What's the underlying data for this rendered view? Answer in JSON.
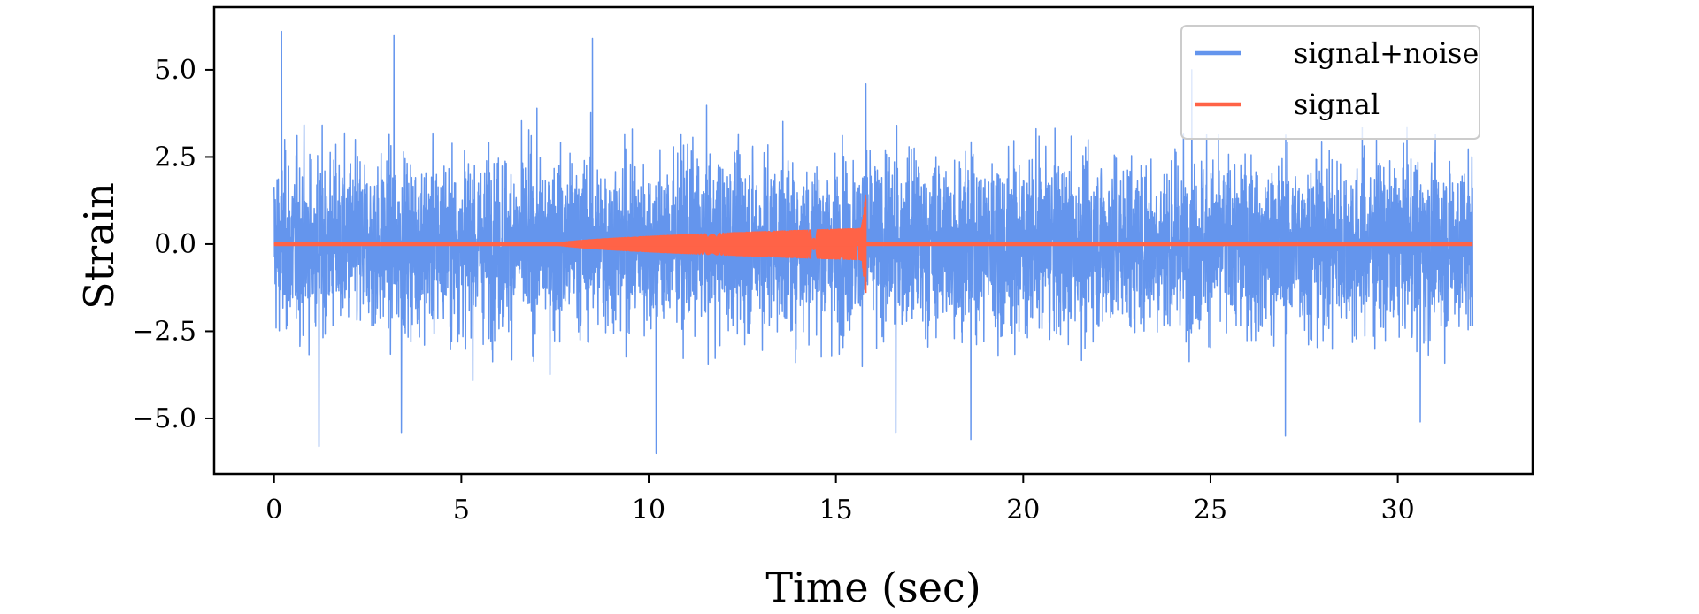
{
  "chart_data": {
    "type": "line",
    "xlabel": "Time (sec)",
    "ylabel": "Strain",
    "xlim": [
      -1.6,
      33.6
    ],
    "ylim": [
      -6.6,
      6.8
    ],
    "xticks": [
      0,
      5,
      10,
      15,
      20,
      25,
      30
    ],
    "yticks": [
      -5.0,
      -2.5,
      0.0,
      2.5,
      5.0
    ],
    "xtick_labels": [
      "0",
      "5",
      "10",
      "15",
      "20",
      "25",
      "30"
    ],
    "ytick_labels": [
      "−5.0",
      "−2.5",
      "0.0",
      "2.5",
      "5.0"
    ],
    "grid": false,
    "legend_position": "top-right",
    "series": [
      {
        "name": "signal+noise",
        "color": "#6495ED",
        "x_range": [
          0,
          32
        ],
        "typical_envelope": [
          -3.5,
          3.5
        ],
        "x": [
          0.2,
          1.2,
          3.2,
          3.4,
          8.5,
          10.2,
          15.8,
          16.6,
          18.6,
          24.5,
          27.0,
          30.6
        ],
        "y": [
          6.1,
          -5.8,
          6.0,
          -5.4,
          5.9,
          -6.0,
          4.6,
          -5.4,
          -5.6,
          5.0,
          -5.5,
          -5.1
        ]
      },
      {
        "name": "signal",
        "color": "#FF6347",
        "x_range": [
          0,
          32
        ],
        "chirp_start": 7.5,
        "merger_time": 15.8,
        "amplitude_before_merger": 0.45,
        "peak_values": [
          1.65,
          -1.4
        ]
      }
    ]
  }
}
